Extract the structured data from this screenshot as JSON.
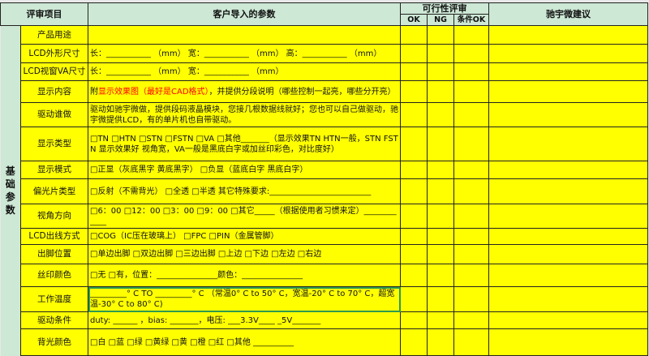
{
  "headers": {
    "item": "评审项目",
    "params": "客户导入的参数",
    "review": "可行性评审",
    "ok": "OK",
    "ng": "NG",
    "cond_ok": "条件OK",
    "suggest": "驰宇微建议"
  },
  "category": "基础参数",
  "rows": [
    {
      "label": "产品用途",
      "value": ""
    },
    {
      "label": "LCD外形尺寸",
      "value": "长：___________  （mm） 宽：___________ （mm） 高：___________ （mm）"
    },
    {
      "label": "LCD视窗VA尺寸",
      "value": "长：___________  （mm） 宽：___________ （mm）"
    },
    {
      "label": "显示内容",
      "prefix": "附",
      "red": "显示效果图（最好是CAD格式）",
      "value": "，并提供分段说明（哪些控制一起亮，哪些分开亮）"
    },
    {
      "label": "驱动谁做",
      "value": "驱动如驰宇微做，提供段码液晶模块，您接几根数据线就好；您也可以自己做驱动，驰宇微提供LCD，有的单片机也自带驱动。"
    },
    {
      "label": "显示类型",
      "value": "□TN   □HTN   □STN  □FSTN   □VA  □其他_______（显示效果TN HTN一般，STN FSTN 显示效果好 视角宽，VA一般是黑底白字或加丝印彩色，对比度好）"
    },
    {
      "label": "显示模式",
      "value": "□正显（灰底黑字 黄底黑字）  □负显（蓝底白字 黑底白字）"
    },
    {
      "label": "偏光片类型",
      "value": "□反射（不需背光）  □全透  □半透     其它特殊要求:_________________________"
    },
    {
      "label": "视角方向",
      "value": "□6：00   □12：00   □3：00   □9：00  □其它_____（根据使用者习惯来定）____________"
    },
    {
      "label": "LCD出线方式",
      "value": "□COG（IC压在玻璃上）  □FPC   □PIN（金属管脚）"
    },
    {
      "label": "出脚位置",
      "value": "□单边出脚 □双边出脚 □三边出脚 □上边 □下边 □左边 □右边"
    },
    {
      "label": "丝印颜色",
      "value": "□无   □有，位置：_______________颜色：_______________"
    },
    {
      "label": "工作温度",
      "value": "_________° C TO _________° C  （常温0° C to 50° C，宽温-20° C to 70° C，超宽温-30° C to 80° C)"
    },
    {
      "label": "驱动条件",
      "value": "duty: ______ ，bias: _______，电压: ___3.3V____ _5V_______"
    },
    {
      "label": "背光颜色",
      "value": "□白   □蓝   □绿   □黄绿   □黄   □橙    □红    □其他 __________"
    }
  ]
}
